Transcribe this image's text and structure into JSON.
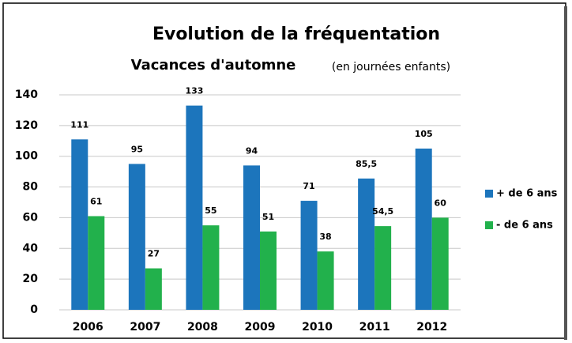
{
  "chart_data": {
    "type": "bar",
    "title": "Evolution de la fréquentation",
    "subtitle": "Vacances d'automne",
    "subtitle_note": "(en journées enfants)",
    "categories": [
      "2006",
      "2007",
      "2008",
      "2009",
      "2010",
      "2011",
      "2012"
    ],
    "series": [
      {
        "name": "+ de 6 ans",
        "color": "#1c75bc",
        "values": [
          111,
          95,
          133,
          94,
          71,
          85.5,
          105
        ],
        "value_labels": [
          "111",
          "95",
          "133",
          "94",
          "71",
          "85,5",
          "105"
        ]
      },
      {
        "name": "- de 6 ans",
        "color": "#22b14c",
        "values": [
          61,
          27,
          55,
          51,
          38,
          54.5,
          60
        ],
        "value_labels": [
          "61",
          "27",
          "55",
          "51",
          "38",
          "54,5",
          "60"
        ]
      }
    ],
    "ylim": [
      0,
      140
    ],
    "yticks": [
      0,
      20,
      40,
      60,
      80,
      100,
      120,
      140
    ],
    "grid": true,
    "legend": "right"
  }
}
